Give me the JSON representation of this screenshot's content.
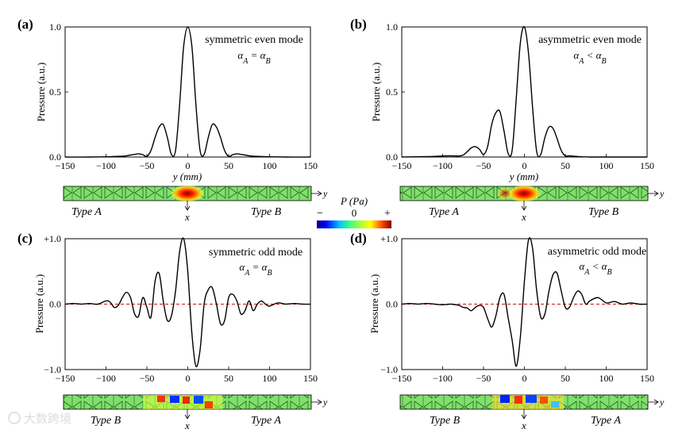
{
  "figure": {
    "colorbar": {
      "label": "P (Pa)",
      "minus": "−",
      "zero": "0",
      "plus": "+"
    },
    "watermark": "大数跨境"
  },
  "chart_data": [
    {
      "panel": "(a)",
      "type": "line",
      "title": "symmetric even mode",
      "subtitle": "α_A = α_B",
      "xlabel": "y (mm)",
      "ylabel": "Pressure (a.u.)",
      "xlim": [
        -150,
        150
      ],
      "ylim": [
        0,
        1.0
      ],
      "xticks": [
        "−150",
        "−100",
        "−50",
        "0",
        "50",
        "100",
        "150"
      ],
      "yticks": [
        "0.0",
        "0.5",
        "1.0"
      ],
      "x": [
        -150,
        -120,
        -100,
        -90,
        -80,
        -75,
        -70,
        -65,
        -60,
        -55,
        -50,
        -45,
        -40,
        -35,
        -30,
        -25,
        -20,
        -15,
        -10,
        -5,
        0,
        5,
        10,
        15,
        20,
        25,
        30,
        35,
        40,
        45,
        50,
        55,
        60,
        65,
        70,
        75,
        80,
        90,
        100,
        120,
        150
      ],
      "y": [
        0,
        0,
        0.002,
        0.004,
        0.006,
        0.01,
        0.015,
        0.02,
        0.025,
        0.018,
        0.005,
        0.05,
        0.15,
        0.23,
        0.25,
        0.15,
        0.02,
        0.05,
        0.4,
        0.85,
        1.0,
        0.85,
        0.4,
        0.05,
        0.02,
        0.15,
        0.25,
        0.23,
        0.15,
        0.05,
        0.005,
        0.018,
        0.025,
        0.02,
        0.015,
        0.01,
        0.006,
        0.004,
        0.002,
        0,
        0
      ],
      "strip": {
        "left_label": "Type A",
        "right_label": "Type B",
        "x_arrow": "x",
        "y_arrow": "y"
      }
    },
    {
      "panel": "(b)",
      "type": "line",
      "title": "asymmetric even mode",
      "subtitle": "α_A < α_B",
      "xlabel": "y (mm)",
      "ylabel": "Pressure (a.u.)",
      "xlim": [
        -150,
        150
      ],
      "ylim": [
        0,
        1.0
      ],
      "xticks": [
        "−150",
        "−100",
        "−50",
        "0",
        "50",
        "100",
        "150"
      ],
      "yticks": [
        "0.0",
        "0.5",
        "1.0"
      ],
      "x": [
        -150,
        -120,
        -100,
        -90,
        -80,
        -75,
        -70,
        -65,
        -60,
        -55,
        -50,
        -45,
        -40,
        -35,
        -30,
        -25,
        -20,
        -15,
        -10,
        -5,
        0,
        5,
        10,
        15,
        20,
        25,
        30,
        35,
        40,
        45,
        50,
        55,
        60,
        65,
        70,
        75,
        80,
        90,
        100,
        120,
        150
      ],
      "y": [
        0,
        0.003,
        0.008,
        0.01,
        0.008,
        0.015,
        0.04,
        0.07,
        0.08,
        0.06,
        0.02,
        0.08,
        0.25,
        0.34,
        0.35,
        0.2,
        0.03,
        0.05,
        0.45,
        0.88,
        1.0,
        0.8,
        0.38,
        0.04,
        0.02,
        0.15,
        0.23,
        0.22,
        0.14,
        0.05,
        0.01,
        0.01,
        0.006,
        0.004,
        0.002,
        0.001,
        0,
        0,
        0,
        0,
        0
      ],
      "strip": {
        "left_label": "Type A",
        "right_label": "Type B",
        "x_arrow": "x",
        "y_arrow": "y"
      }
    },
    {
      "panel": "(c)",
      "type": "line",
      "title": "symmetric odd mode",
      "subtitle": "α_A = α_B",
      "xlabel": "",
      "ylabel": "Pressure (a.u.)",
      "xlim": [
        -150,
        150
      ],
      "ylim": [
        -1.0,
        1.0
      ],
      "xticks": [
        "−150",
        "−100",
        "−50",
        "0",
        "50",
        "100",
        "150"
      ],
      "yticks": [
        "−1.0",
        "0.0",
        "+1.0"
      ],
      "x": [
        -150,
        -140,
        -130,
        -120,
        -110,
        -100,
        -95,
        -90,
        -85,
        -80,
        -75,
        -70,
        -65,
        -60,
        -55,
        -50,
        -45,
        -40,
        -35,
        -30,
        -25,
        -20,
        -15,
        -10,
        -5,
        0,
        5,
        10,
        15,
        20,
        25,
        30,
        35,
        40,
        45,
        50,
        55,
        60,
        65,
        70,
        75,
        80,
        85,
        90,
        95,
        100,
        110,
        120,
        130,
        140,
        150
      ],
      "y": [
        0,
        0.01,
        0,
        0.01,
        0,
        0.05,
        0.03,
        -0.05,
        -0.02,
        0.1,
        0.18,
        0.1,
        -0.15,
        -0.18,
        0.1,
        -0.05,
        -0.2,
        0.35,
        0.47,
        0.05,
        -0.25,
        -0.18,
        0.2,
        0.8,
        1.0,
        0.5,
        -0.45,
        -0.95,
        -0.7,
        0,
        0.22,
        0.25,
        0,
        -0.3,
        -0.25,
        0.1,
        0.15,
        0.05,
        -0.15,
        -0.1,
        0.05,
        -0.1,
        0,
        0.05,
        0,
        -0.03,
        0.02,
        0,
        0.01,
        0,
        0
      ],
      "strip": {
        "left_label": "Type B",
        "right_label": "Type A",
        "x_arrow": "x",
        "y_arrow": "y"
      }
    },
    {
      "panel": "(d)",
      "type": "line",
      "title": "asymmetric odd mode",
      "subtitle": "α_A < α_B",
      "xlabel": "",
      "ylabel": "Pressure (a.u.)",
      "xlim": [
        -150,
        150
      ],
      "ylim": [
        -1.0,
        1.0
      ],
      "xticks": [
        "−150",
        "−100",
        "−50",
        "0",
        "50",
        "100",
        "150"
      ],
      "yticks": [
        "−1.0",
        "0.0",
        "+1.0"
      ],
      "x": [
        -150,
        -140,
        -130,
        -120,
        -110,
        -100,
        -90,
        -80,
        -75,
        -70,
        -65,
        -60,
        -55,
        -50,
        -45,
        -40,
        -35,
        -30,
        -25,
        -20,
        -15,
        -10,
        -5,
        0,
        5,
        10,
        15,
        20,
        25,
        30,
        35,
        40,
        45,
        50,
        55,
        60,
        65,
        70,
        75,
        80,
        90,
        100,
        110,
        120,
        130,
        140,
        150
      ],
      "y": [
        0,
        0.01,
        0,
        0.01,
        0,
        -0.01,
        0,
        -0.02,
        -0.05,
        -0.06,
        -0.1,
        -0.05,
        -0.02,
        -0.05,
        -0.22,
        -0.35,
        -0.18,
        0.1,
        0.15,
        -0.2,
        -0.55,
        -0.95,
        -0.5,
        0.35,
        0.98,
        0.85,
        0.2,
        -0.2,
        -0.15,
        0.2,
        0.45,
        0.47,
        0.2,
        -0.05,
        -0.05,
        0.1,
        0.2,
        0.15,
        0,
        0.05,
        0.1,
        0.02,
        0.04,
        0,
        0.02,
        0,
        0
      ],
      "strip": {
        "left_label": "Type B",
        "right_label": "Type A",
        "x_arrow": "x",
        "y_arrow": "y"
      }
    }
  ]
}
